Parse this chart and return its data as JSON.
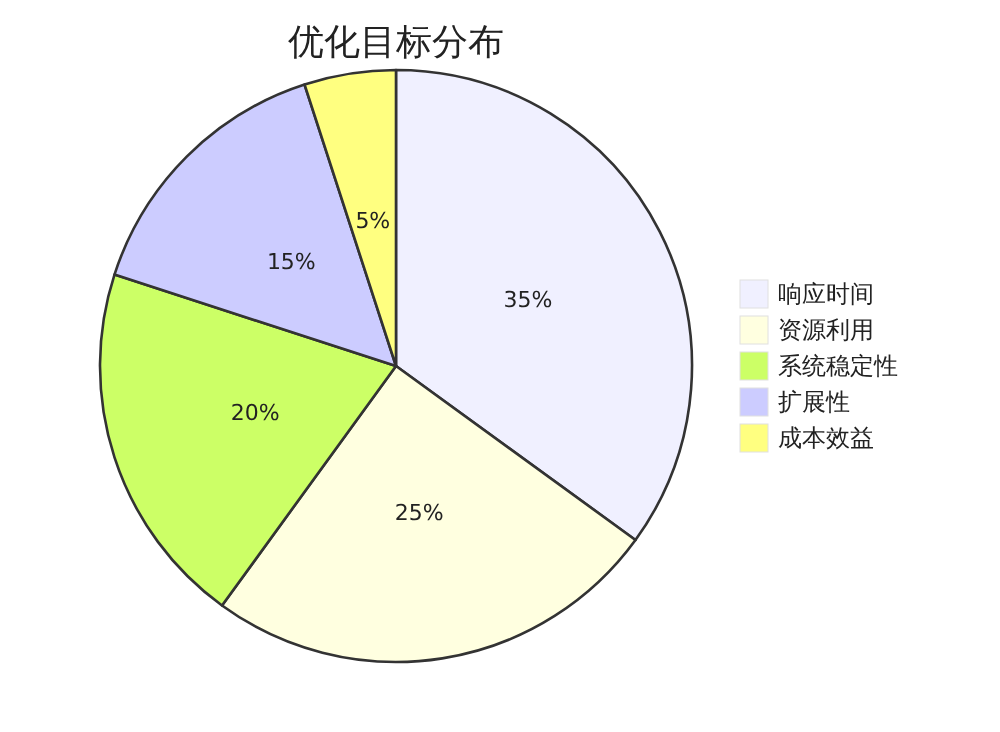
{
  "chart_data": {
    "type": "pie",
    "title": "优化目标分布",
    "categories": [
      "响应时间",
      "资源利用",
      "系统稳定性",
      "扩展性",
      "成本效益"
    ],
    "values": [
      35,
      25,
      20,
      15,
      5
    ],
    "colors": [
      "#f0f0ff",
      "#ffffe0",
      "#ccff66",
      "#ccccff",
      "#ffff80"
    ],
    "value_labels": [
      "35%",
      "25%",
      "20%",
      "15%",
      "5%"
    ],
    "legend": "right"
  }
}
